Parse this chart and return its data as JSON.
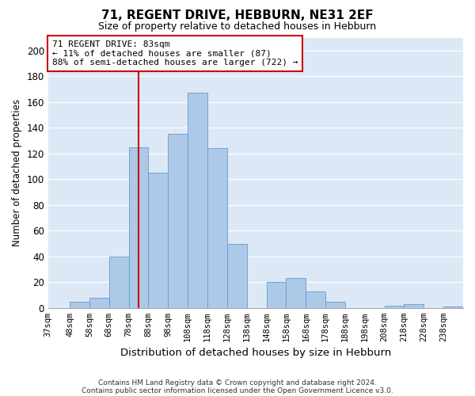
{
  "title": "71, REGENT DRIVE, HEBBURN, NE31 2EF",
  "subtitle": "Size of property relative to detached houses in Hebburn",
  "xlabel": "Distribution of detached houses by size in Hebburn",
  "ylabel": "Number of detached properties",
  "bin_labels": [
    "37sqm",
    "48sqm",
    "58sqm",
    "68sqm",
    "78sqm",
    "88sqm",
    "98sqm",
    "108sqm",
    "118sqm",
    "128sqm",
    "138sqm",
    "148sqm",
    "158sqm",
    "168sqm",
    "178sqm",
    "188sqm",
    "198sqm",
    "208sqm",
    "218sqm",
    "228sqm",
    "238sqm"
  ],
  "bin_left_edges": [
    37,
    48,
    58,
    68,
    78,
    88,
    98,
    108,
    118,
    128,
    138,
    148,
    158,
    168,
    178,
    188,
    198,
    208,
    218,
    228,
    238
  ],
  "bin_widths": [
    11,
    10,
    10,
    10,
    10,
    10,
    10,
    10,
    10,
    10,
    10,
    10,
    10,
    10,
    10,
    10,
    10,
    10,
    10,
    10,
    10
  ],
  "bar_heights": [
    0,
    5,
    8,
    40,
    125,
    105,
    135,
    167,
    124,
    50,
    0,
    20,
    23,
    13,
    5,
    0,
    0,
    2,
    3,
    0,
    1
  ],
  "bar_color": "#adc9e8",
  "bar_edge_color": "#6699cc",
  "vline_x": 83,
  "vline_color": "#cc0000",
  "ylim": [
    0,
    210
  ],
  "yticks": [
    0,
    20,
    40,
    60,
    80,
    100,
    120,
    140,
    160,
    180,
    200
  ],
  "annotation_title": "71 REGENT DRIVE: 83sqm",
  "annotation_line1": "← 11% of detached houses are smaller (87)",
  "annotation_line2": "88% of semi-detached houses are larger (722) →",
  "footnote1": "Contains HM Land Registry data © Crown copyright and database right 2024.",
  "footnote2": "Contains public sector information licensed under the Open Government Licence v3.0.",
  "fig_bg_color": "#ffffff",
  "plot_bg_color": "#dce8f5"
}
